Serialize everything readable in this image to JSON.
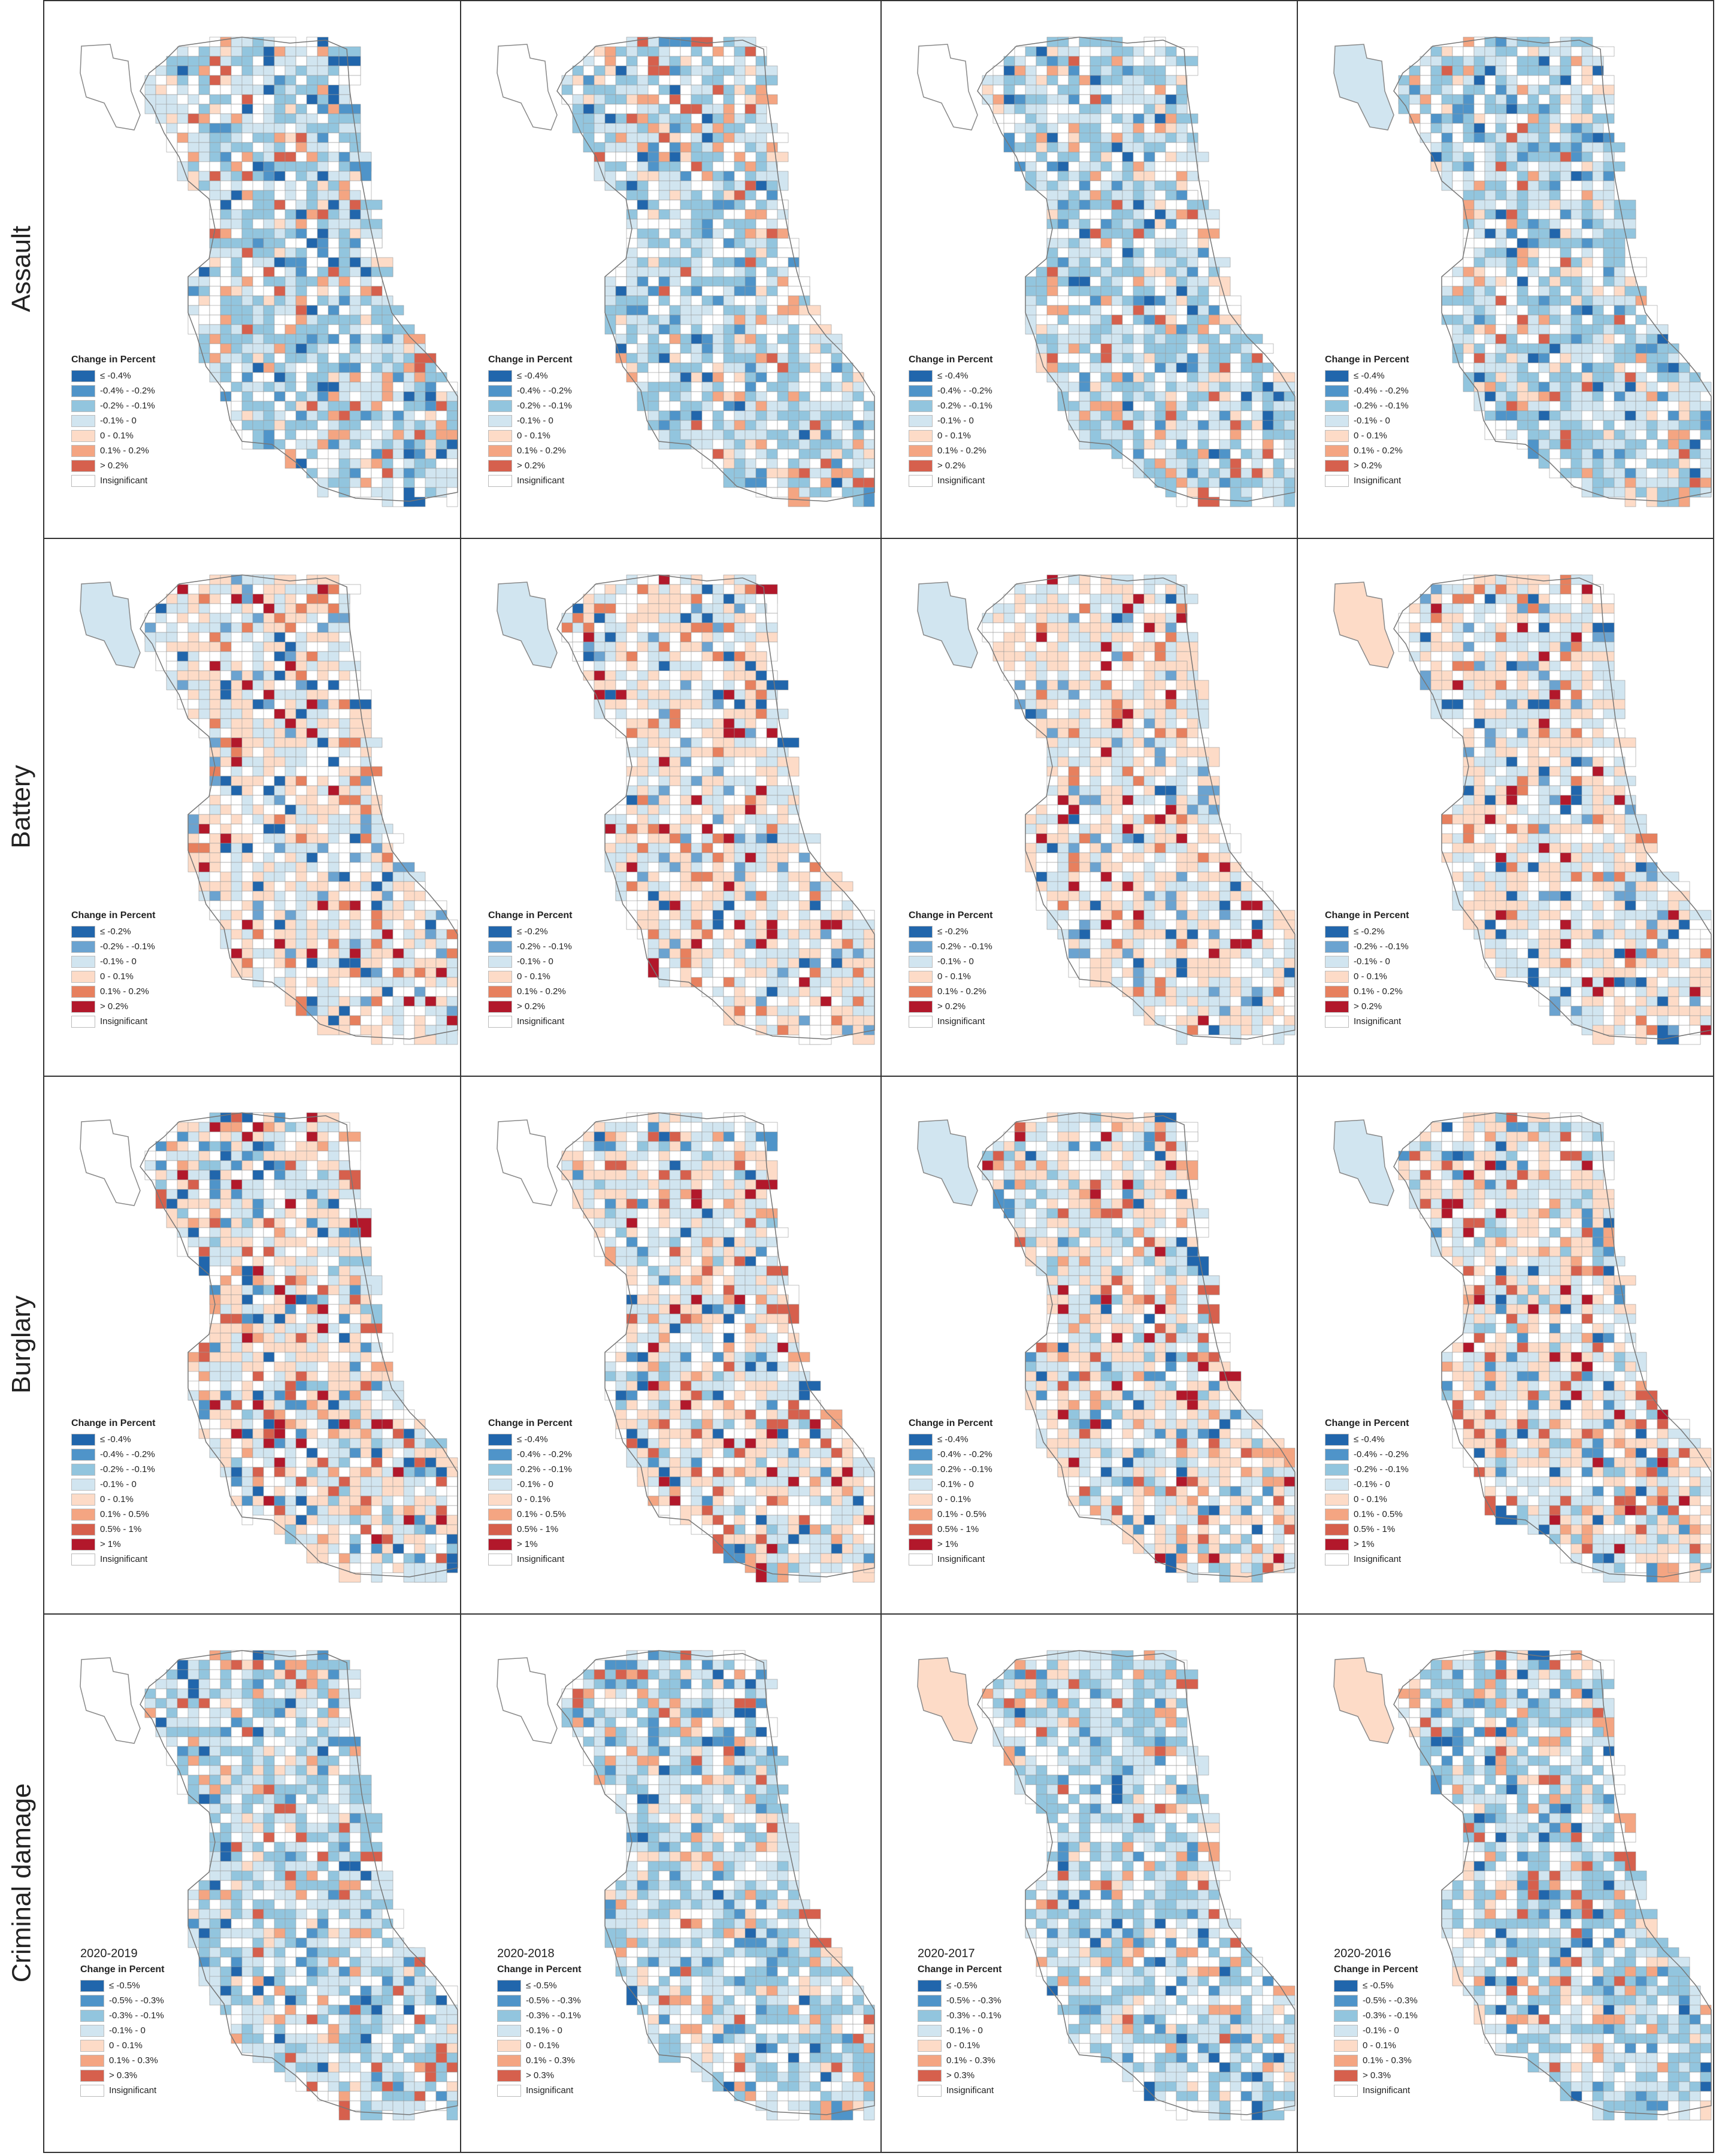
{
  "rows": [
    {
      "label": "Assault",
      "legend": {
        "title": "Change in Percent",
        "classes": [
          {
            "label": "≤ -0.4%",
            "color": "#2166ac"
          },
          {
            "label": "-0.4% - -0.2%",
            "color": "#4f94c9"
          },
          {
            "label": "-0.2% - -0.1%",
            "color": "#92c5de"
          },
          {
            "label": "-0.1% - 0",
            "color": "#d1e5f0"
          },
          {
            "label": "0 - 0.1%",
            "color": "#fddbc7"
          },
          {
            "label": "0.1% - 0.2%",
            "color": "#f4a582"
          },
          {
            "label": "> 0.2%",
            "color": "#d6604d"
          },
          {
            "label": "Insignificant",
            "color": "#ffffff"
          }
        ]
      }
    },
    {
      "label": "Battery",
      "legend": {
        "title": "Change in Percent",
        "classes": [
          {
            "label": "≤ -0.2%",
            "color": "#2166ac"
          },
          {
            "label": "-0.2% - -0.1%",
            "color": "#6ba3d0"
          },
          {
            "label": "-0.1% - 0",
            "color": "#d1e5f0"
          },
          {
            "label": "0 - 0.1%",
            "color": "#fddbc7"
          },
          {
            "label": "0.1% - 0.2%",
            "color": "#e7805e"
          },
          {
            "label": "> 0.2%",
            "color": "#b2182b"
          },
          {
            "label": "Insignificant",
            "color": "#ffffff"
          }
        ]
      }
    },
    {
      "label": "Burglary",
      "legend": {
        "title": "Change in Percent",
        "classes": [
          {
            "label": "≤ -0.4%",
            "color": "#2166ac"
          },
          {
            "label": "-0.4% - -0.2%",
            "color": "#4f94c9"
          },
          {
            "label": "-0.2% - -0.1%",
            "color": "#92c5de"
          },
          {
            "label": "-0.1% - 0",
            "color": "#d1e5f0"
          },
          {
            "label": "0 - 0.1%",
            "color": "#fddbc7"
          },
          {
            "label": "0.1% - 0.5%",
            "color": "#f4a582"
          },
          {
            "label": "0.5% - 1%",
            "color": "#d6604d"
          },
          {
            "label": "> 1%",
            "color": "#b2182b"
          },
          {
            "label": "Insignificant",
            "color": "#ffffff"
          }
        ]
      }
    },
    {
      "label": "Criminal damage",
      "legend": {
        "title": "Change in Percent",
        "classes": [
          {
            "label": "≤ -0.5%",
            "color": "#2166ac"
          },
          {
            "label": "-0.5% - -0.3%",
            "color": "#4f94c9"
          },
          {
            "label": "-0.3% - -0.1%",
            "color": "#92c5de"
          },
          {
            "label": "-0.1% - 0",
            "color": "#d1e5f0"
          },
          {
            "label": "0 - 0.1%",
            "color": "#fddbc7"
          },
          {
            "label": "0.1% - 0.3%",
            "color": "#f4a582"
          },
          {
            "label": "> 0.3%",
            "color": "#d6604d"
          },
          {
            "label": "Insignificant",
            "color": "#ffffff"
          }
        ]
      }
    }
  ],
  "periods": [
    "2020-2019",
    "2020-2018",
    "2020-2017",
    "2020-2016"
  ]
}
